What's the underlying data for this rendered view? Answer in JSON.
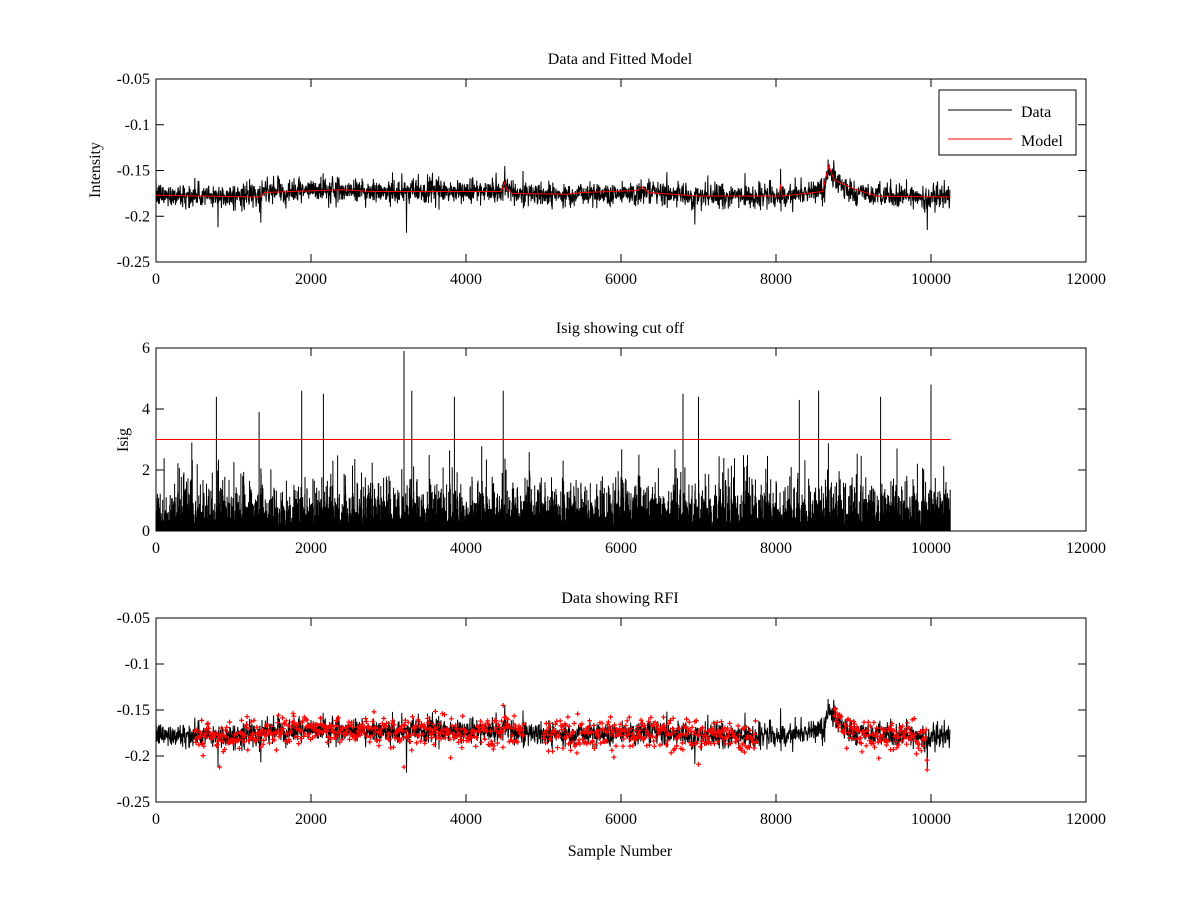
{
  "chart_data": [
    {
      "type": "line",
      "title": "Data and Fitted Model",
      "xlabel": "",
      "ylabel": "Intensity",
      "xlim": [
        0,
        12000
      ],
      "ylim": [
        -0.25,
        -0.05
      ],
      "y_reversed": true,
      "xticks": [
        0,
        2000,
        4000,
        6000,
        8000,
        10000,
        12000
      ],
      "yticks": [
        -0.25,
        -0.2,
        -0.15,
        -0.1,
        -0.05
      ],
      "grid": false,
      "legend": {
        "position": "top-right",
        "entries": [
          "Data",
          "Model"
        ]
      },
      "series": [
        {
          "name": "Data",
          "color": "#000000",
          "x_range": [
            0,
            10250
          ],
          "noise_amplitude": 0.012,
          "baseline": [
            [
              0,
              -0.177
            ],
            [
              1350,
              -0.178
            ],
            [
              1400,
              -0.173
            ],
            [
              2400,
              -0.171
            ],
            [
              2800,
              -0.173
            ],
            [
              4450,
              -0.173
            ],
            [
              4520,
              -0.165
            ],
            [
              4600,
              -0.175
            ],
            [
              5300,
              -0.176
            ],
            [
              6250,
              -0.174
            ],
            [
              7000,
              -0.178
            ],
            [
              8050,
              -0.178
            ],
            [
              8600,
              -0.17
            ],
            [
              8700,
              -0.15
            ],
            [
              8900,
              -0.172
            ],
            [
              9300,
              -0.178
            ],
            [
              10250,
              -0.179
            ]
          ],
          "spikes": [
            [
              800,
              -0.212
            ],
            [
              1350,
              -0.207
            ],
            [
              3230,
              -0.218
            ],
            [
              4500,
              -0.145
            ],
            [
              8060,
              -0.148
            ],
            [
              8670,
              -0.138
            ],
            [
              6950,
              -0.209
            ],
            [
              9950,
              -0.215
            ]
          ]
        },
        {
          "name": "Model",
          "color": "#ff0000",
          "x_range": [
            0,
            10250
          ],
          "points": [
            [
              0,
              -0.177
            ],
            [
              1300,
              -0.179
            ],
            [
              1360,
              -0.178
            ],
            [
              1400,
              -0.174
            ],
            [
              2400,
              -0.171
            ],
            [
              2800,
              -0.173
            ],
            [
              4450,
              -0.173
            ],
            [
              4500,
              -0.163
            ],
            [
              4520,
              -0.17
            ],
            [
              4600,
              -0.175
            ],
            [
              5300,
              -0.176
            ],
            [
              5500,
              -0.174
            ],
            [
              6200,
              -0.172
            ],
            [
              6280,
              -0.168
            ],
            [
              6350,
              -0.174
            ],
            [
              7000,
              -0.178
            ],
            [
              8040,
              -0.178
            ],
            [
              8060,
              -0.165
            ],
            [
              8080,
              -0.178
            ],
            [
              8600,
              -0.173
            ],
            [
              8680,
              -0.145
            ],
            [
              8750,
              -0.16
            ],
            [
              9000,
              -0.17
            ],
            [
              9300,
              -0.178
            ],
            [
              10250,
              -0.179
            ]
          ]
        }
      ]
    },
    {
      "type": "line",
      "title": "Isig showing cut off",
      "xlabel": "",
      "ylabel": "Isig",
      "xlim": [
        0,
        12000
      ],
      "ylim": [
        0,
        6
      ],
      "xticks": [
        0,
        2000,
        4000,
        6000,
        8000,
        10000,
        12000
      ],
      "yticks": [
        0,
        2,
        4,
        6
      ],
      "grid": false,
      "series": [
        {
          "name": "Isig",
          "color": "#000000",
          "x_range": [
            0,
            10250
          ],
          "spikes": [
            [
              780,
              4.4
            ],
            [
              1330,
              3.9
            ],
            [
              1880,
              4.6
            ],
            [
              2160,
              4.5
            ],
            [
              3200,
              5.9
            ],
            [
              3300,
              4.6
            ],
            [
              3850,
              4.4
            ],
            [
              4480,
              4.6
            ],
            [
              6800,
              4.5
            ],
            [
              7000,
              4.4
            ],
            [
              8300,
              4.3
            ],
            [
              8550,
              4.6
            ],
            [
              9350,
              4.4
            ],
            [
              10000,
              4.8
            ]
          ]
        },
        {
          "name": "Cut off",
          "color": "#ff0000",
          "points": [
            [
              0,
              3.0
            ],
            [
              10250,
              3.0
            ]
          ]
        }
      ]
    },
    {
      "type": "scatter",
      "title": "Data showing RFI",
      "xlabel": "Sample Number",
      "ylabel": "",
      "xlim": [
        0,
        12000
      ],
      "ylim": [
        -0.25,
        -0.05
      ],
      "y_reversed": true,
      "xticks": [
        0,
        2000,
        4000,
        6000,
        8000,
        10000,
        12000
      ],
      "yticks": [
        -0.25,
        -0.2,
        -0.15,
        -0.1,
        -0.05
      ],
      "grid": false,
      "series": [
        {
          "name": "Data",
          "color": "#000000",
          "x_range": [
            0,
            10250
          ],
          "noise_amplitude": 0.012
        },
        {
          "name": "RFI",
          "color": "#ff0000",
          "marker": "+",
          "x_segments": [
            [
              500,
              4750
            ],
            [
              5000,
              7750
            ],
            [
              8750,
              9950
            ]
          ],
          "noise_amplitude": 0.014,
          "baseline": -0.176,
          "spikes": [
            [
              820,
              -0.212
            ],
            [
              3200,
              -0.212
            ],
            [
              4480,
              -0.145
            ],
            [
              7000,
              -0.209
            ],
            [
              9950,
              -0.215
            ]
          ]
        }
      ]
    }
  ]
}
